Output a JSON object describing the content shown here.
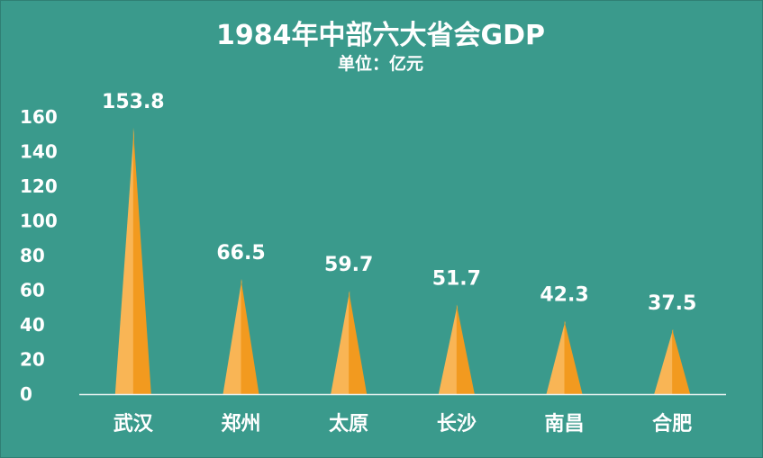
{
  "chart_data": {
    "type": "bar",
    "title": "1984年中部六大省会GDP",
    "subtitle": "单位：亿元",
    "categories": [
      "武汉",
      "郑州",
      "太原",
      "长沙",
      "南昌",
      "合肥"
    ],
    "values": [
      153.8,
      66.5,
      59.7,
      51.7,
      42.3,
      37.5
    ],
    "value_labels": [
      "153.8",
      "66.5",
      "59.7",
      "51.7",
      "42.3",
      "37.5"
    ],
    "yticks": [
      "0",
      "20",
      "40",
      "60",
      "80",
      "100",
      "120",
      "140",
      "160"
    ],
    "ylim": [
      0,
      160
    ],
    "grid": false,
    "legend": "none",
    "bar_shape": "cone",
    "colors": {
      "background": "#3a9a8c",
      "bar_light": "#f9b555",
      "bar_dark": "#f29a1f",
      "axis": "#e8f3f1",
      "text": "#ffffff"
    }
  }
}
